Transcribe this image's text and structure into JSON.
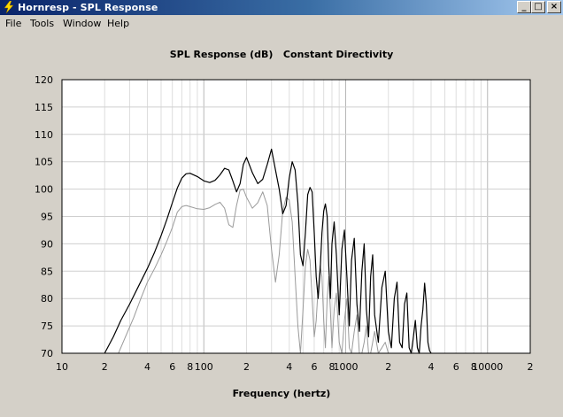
{
  "window": {
    "title": "Hornresp - SPL Response",
    "minimize_glyph": "_",
    "maximize_glyph": "□",
    "close_glyph": "×"
  },
  "menu": [
    "File",
    "Tools",
    "Window",
    "Help"
  ],
  "chart_data": {
    "type": "line",
    "title": "SPL Response (dB)   Constant Directivity",
    "xlabel": "Frequency (hertz)",
    "ylabel": "",
    "x_scale": "log",
    "xlim": [
      10,
      20000
    ],
    "ylim": [
      70,
      120
    ],
    "grid": true,
    "x_tick_labels": [
      "10",
      "2",
      "4",
      "6",
      "8",
      "100",
      "2",
      "4",
      "6",
      "8",
      "1000",
      "2",
      "4",
      "6",
      "8",
      "10000",
      "2"
    ],
    "x_tick_values": [
      10,
      20,
      40,
      60,
      80,
      100,
      200,
      400,
      600,
      800,
      1000,
      2000,
      4000,
      6000,
      8000,
      10000,
      20000
    ],
    "y_tick_labels": [
      "70",
      "75",
      "80",
      "85",
      "90",
      "95",
      "100",
      "105",
      "110",
      "115",
      "120"
    ],
    "series": [
      {
        "color": "#000000",
        "x": [
          20,
          23,
          26,
          30,
          35,
          40,
          45,
          50,
          55,
          60,
          65,
          70,
          75,
          80,
          90,
          100,
          110,
          120,
          130,
          140,
          150,
          160,
          170,
          180,
          190,
          200,
          220,
          240,
          260,
          280,
          300,
          320,
          340,
          360,
          380,
          400,
          420,
          440,
          460,
          480,
          500,
          520,
          540,
          560,
          580,
          600,
          620,
          640,
          660,
          680,
          700,
          720,
          740,
          760,
          780,
          800,
          830,
          860,
          900,
          940,
          980,
          1020,
          1060,
          1100,
          1150,
          1200,
          1250,
          1300,
          1350,
          1400,
          1450,
          1500,
          1550,
          1600,
          1700,
          1800,
          1900,
          2000,
          2100,
          2200,
          2300,
          2400,
          2500,
          2600,
          2700,
          2800,
          2900,
          3000,
          3100,
          3200,
          3300,
          3400,
          3500,
          3600,
          3700,
          3800,
          3900,
          4000
        ],
        "y": [
          70,
          73,
          76,
          79,
          82.5,
          85.5,
          88.5,
          91.5,
          94.5,
          97.5,
          100.2,
          102,
          102.8,
          102.9,
          102.3,
          101.5,
          101.2,
          101.6,
          102.6,
          103.8,
          103.5,
          101.5,
          99.5,
          101,
          104.5,
          105.8,
          103,
          101,
          101.8,
          104.5,
          107.3,
          103.5,
          100,
          95.5,
          97,
          102,
          105,
          103.5,
          97.5,
          88,
          86,
          92,
          99,
          100.3,
          99.5,
          92,
          84,
          80,
          85,
          92,
          96,
          97.3,
          95,
          86,
          80,
          90,
          94,
          88,
          77,
          89,
          92.5,
          84,
          75,
          87,
          91,
          79,
          74,
          85,
          90,
          78,
          73,
          84,
          88,
          77,
          72,
          82,
          85,
          74,
          71,
          80,
          83,
          72,
          71,
          79,
          81,
          71,
          70,
          73,
          76,
          71,
          70,
          75,
          78,
          82.8,
          79,
          72,
          70.5,
          70
        ]
      },
      {
        "color": "#9a9a9a",
        "x": [
          25,
          28,
          32,
          36,
          40,
          45,
          50,
          55,
          60,
          65,
          70,
          75,
          80,
          90,
          100,
          110,
          120,
          130,
          140,
          150,
          160,
          170,
          180,
          190,
          200,
          220,
          240,
          260,
          280,
          300,
          320,
          340,
          360,
          380,
          400,
          420,
          440,
          460,
          480,
          500,
          520,
          540,
          560,
          580,
          600,
          620,
          640,
          660,
          680,
          700,
          720,
          740,
          760,
          780,
          800,
          830,
          860,
          900,
          940,
          980,
          1020,
          1060,
          1100,
          1150,
          1200,
          1250,
          1300,
          1350,
          1400,
          1450,
          1500,
          1550,
          1600,
          1700,
          1800,
          1900,
          2000
        ],
        "y": [
          70,
          73,
          76.5,
          80,
          83,
          85.5,
          88,
          90.5,
          93,
          95.8,
          96.8,
          97,
          96.8,
          96.4,
          96.3,
          96.6,
          97.2,
          97.6,
          96.5,
          93.5,
          93,
          97,
          99.8,
          100,
          98.5,
          96.5,
          97.5,
          99.5,
          97,
          89,
          83,
          88,
          96,
          98.5,
          98,
          94,
          84,
          75,
          70,
          78,
          86,
          89,
          87,
          80,
          73,
          76,
          82,
          86,
          84,
          76,
          71,
          80,
          84,
          78,
          71,
          78,
          81,
          72,
          70,
          76,
          80,
          71,
          70,
          74,
          77,
          70,
          70,
          72,
          75,
          70,
          70,
          72,
          74,
          70,
          71,
          72,
          70
        ]
      }
    ]
  }
}
